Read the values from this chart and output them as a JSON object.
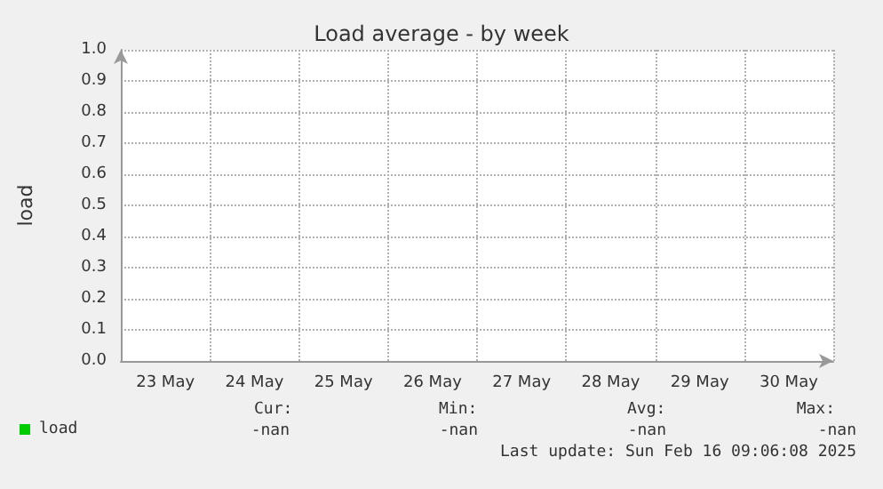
{
  "chart_data": {
    "type": "line",
    "title": "Load average - by week",
    "ylabel": "load",
    "categories": [
      "23 May",
      "24 May",
      "25 May",
      "26 May",
      "27 May",
      "28 May",
      "29 May",
      "30 May"
    ],
    "series": [
      {
        "name": "load",
        "color": "#00cc00",
        "values": [
          null,
          null,
          null,
          null,
          null,
          null,
          null,
          null
        ]
      }
    ],
    "ylim": [
      0,
      1
    ],
    "yticks": [
      {
        "value": 0,
        "label": "0.0"
      },
      {
        "value": 0.1,
        "label": "0.1"
      },
      {
        "value": 0.2,
        "label": "0.2"
      },
      {
        "value": 0.3,
        "label": "0.3"
      },
      {
        "value": 0.4,
        "label": "0.4"
      },
      {
        "value": 0.5,
        "label": "0.5"
      },
      {
        "value": 0.6,
        "label": "0.6"
      },
      {
        "value": 0.7,
        "label": "0.7"
      },
      {
        "value": 0.8,
        "label": "0.8"
      },
      {
        "value": 0.9,
        "label": "0.9"
      },
      {
        "value": 1,
        "label": "1.0"
      }
    ],
    "grid": true,
    "legend": "bottom left",
    "annotations": [
      "Cur:",
      "-nan",
      "Min:",
      "-nan",
      "Avg:",
      "-nan",
      "Max:",
      "-nan",
      "Last update: Sun Feb 16 09:06:08 2025"
    ]
  }
}
